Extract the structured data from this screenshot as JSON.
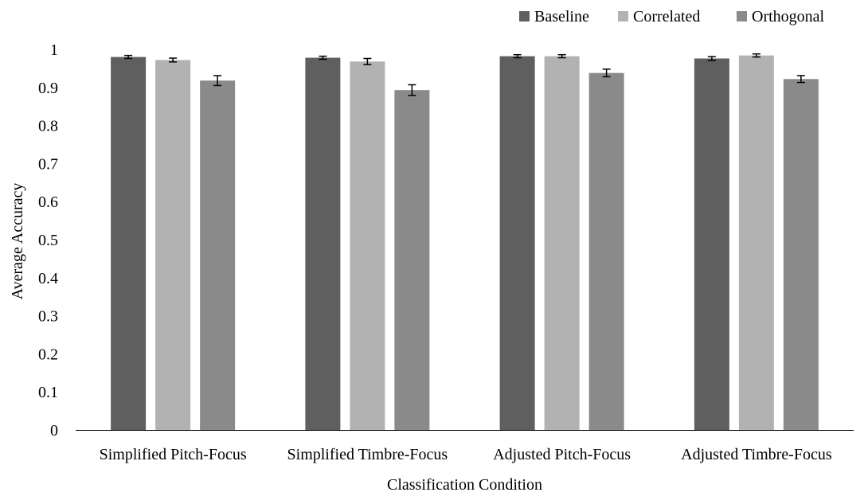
{
  "chart_data": {
    "type": "bar",
    "title": "",
    "xlabel": "Classification Condition",
    "ylabel": "Average Accuracy",
    "ylim": [
      0,
      1
    ],
    "yticks": [
      0,
      0.1,
      0.2,
      0.3,
      0.4,
      0.5,
      0.6,
      0.7,
      0.8,
      0.9,
      1
    ],
    "ytick_labels": [
      "0",
      "0.1",
      "0.2",
      "0.3",
      "0.4",
      "0.5",
      "0.6",
      "0.7",
      "0.8",
      "0.9",
      "1"
    ],
    "grid": false,
    "legend_position": "top-right",
    "categories": [
      "Simplified Pitch-Focus",
      "Simplified Timbre-Focus",
      "Adjusted Pitch-Focus",
      "Adjusted Timbre-Focus"
    ],
    "series": [
      {
        "name": "Baseline",
        "color": "#5f5f5f",
        "values": [
          0.98,
          0.978,
          0.982,
          0.976
        ],
        "errors": [
          0.004,
          0.004,
          0.004,
          0.005
        ]
      },
      {
        "name": "Correlated",
        "color": "#b2b2b2",
        "values": [
          0.972,
          0.968,
          0.982,
          0.984
        ],
        "errors": [
          0.005,
          0.008,
          0.004,
          0.004
        ]
      },
      {
        "name": "Orthogonal",
        "color": "#8a8a8a",
        "values": [
          0.918,
          0.893,
          0.938,
          0.922
        ],
        "errors": [
          0.013,
          0.014,
          0.01,
          0.009
        ]
      }
    ]
  }
}
